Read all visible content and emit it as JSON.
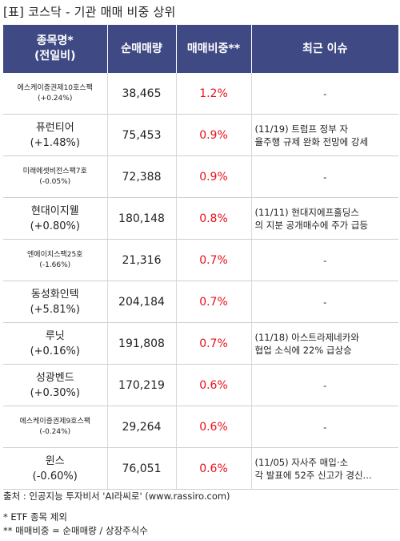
{
  "title": "[표] 코스닥 - 기관 매매 비중 상위",
  "headers": {
    "name_line1": "종목명*",
    "name_line2": "(전일비)",
    "volume": "순매매량",
    "ratio": "매매비중**",
    "issue": "최근 이슈"
  },
  "rows": [
    {
      "name": "에스케이증권제10호스팩",
      "change": "(+0.24%)",
      "volume": "38,465",
      "ratio": "1.2%",
      "issue1": "-",
      "issue2": ""
    },
    {
      "name": "퓨런티어",
      "change": "(+1.48%)",
      "volume": "75,453",
      "ratio": "0.9%",
      "issue1": "(11/19) 트럼프 정부 자",
      "issue2": "율주행 규제 완화 전망에 강세"
    },
    {
      "name": "미래에셋비전스팩7호",
      "change": "(-0.05%)",
      "volume": "72,388",
      "ratio": "0.9%",
      "issue1": "-",
      "issue2": ""
    },
    {
      "name": "현대이지웰",
      "change": "(+0.80%)",
      "volume": "180,148",
      "ratio": "0.8%",
      "issue1": "(11/11) 현대지에프홀딩스",
      "issue2": "의 지분 공개매수에 주가 급등"
    },
    {
      "name": "엔에이치스팩25호",
      "change": "(-1.66%)",
      "volume": "21,316",
      "ratio": "0.7%",
      "issue1": "-",
      "issue2": ""
    },
    {
      "name": "동성화인텍",
      "change": "(+5.81%)",
      "volume": "204,184",
      "ratio": "0.7%",
      "issue1": "-",
      "issue2": ""
    },
    {
      "name": "루닛",
      "change": "(+0.16%)",
      "volume": "191,808",
      "ratio": "0.7%",
      "issue1": "(11/18) 아스트라제네카와",
      "issue2": "협업 소식에 22% 급상승"
    },
    {
      "name": "성광벤드",
      "change": "(+0.30%)",
      "volume": "170,219",
      "ratio": "0.6%",
      "issue1": "-",
      "issue2": ""
    },
    {
      "name": "에스케이증권제9호스팩",
      "change": "(-0.24%)",
      "volume": "29,264",
      "ratio": "0.6%",
      "issue1": "-",
      "issue2": ""
    },
    {
      "name": "윈스",
      "change": "(-0.60%)",
      "volume": "76,051",
      "ratio": "0.6%",
      "issue1": "(11/05) 자사주 매입·소",
      "issue2": "각 발표에 52주 신고가 경신..."
    }
  ],
  "footer": {
    "source": "출처 : 인공지능 투자비서 'AI라씨로' (www.rassiro.com)",
    "note1": "* ETF 종목 제외",
    "note2": "** 매매비중 = 순매매량 / 상장주식수"
  }
}
